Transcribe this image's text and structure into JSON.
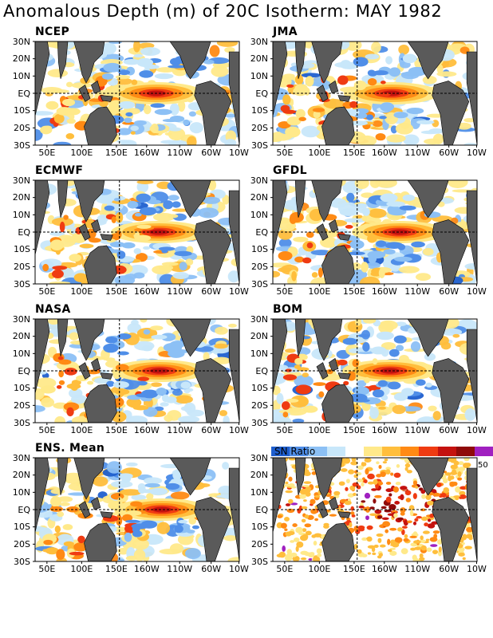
{
  "title": "Anomalous Depth (m) of 20C Isotherm: MAY 1982",
  "lat_labels": [
    "30N",
    "20N",
    "10N",
    "EQ",
    "10S",
    "20S",
    "30S"
  ],
  "lon_labels": [
    "50E",
    "100E",
    "150E",
    "160W",
    "110W",
    "60W",
    "10W"
  ],
  "panels": [
    {
      "label": "NCEP",
      "seed": 11,
      "type": "anomaly"
    },
    {
      "label": "JMA",
      "seed": 23,
      "type": "anomaly"
    },
    {
      "label": "ECMWF",
      "seed": 37,
      "type": "anomaly"
    },
    {
      "label": "GFDL",
      "seed": 41,
      "type": "anomaly"
    },
    {
      "label": "NASA",
      "seed": 53,
      "type": "anomaly"
    },
    {
      "label": "BOM",
      "seed": 67,
      "type": "anomaly"
    },
    {
      "label": "ENS. Mean",
      "seed": 79,
      "type": "anomaly"
    },
    {
      "label": "",
      "seed": 97,
      "type": "snratio"
    }
  ],
  "legend": {
    "title": "SN Ratio",
    "max_label": "50",
    "colors": [
      "#1f5fcf",
      "#4f8ee8",
      "#8cc0f5",
      "#c8e7fa",
      "#ffffff",
      "#ffe98a",
      "#ffbe3c",
      "#ff8a14",
      "#ef3b12",
      "#c4120f",
      "#8f0a0a",
      "#a020c0"
    ]
  },
  "colors": {
    "land": "#5a5a5a",
    "pos": [
      "#ffe98a",
      "#ffbe3c",
      "#ff8a14",
      "#ef3b12",
      "#c4120f",
      "#8f0a0a"
    ],
    "neg": [
      "#c8e7fa",
      "#8cc0f5",
      "#4f8ee8",
      "#1f5fcf"
    ]
  }
}
